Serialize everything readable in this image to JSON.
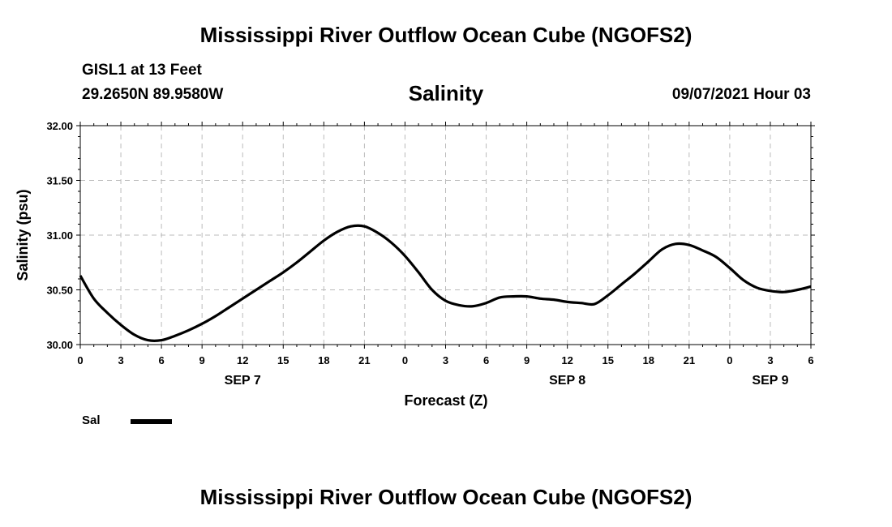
{
  "header": {
    "title": "Mississippi River Outflow Ocean Cube (NGOFS2)",
    "station_name": "GISL1 at 13 Feet",
    "station_coords": "29.2650N  89.9580W",
    "chart_title": "Salinity",
    "run_time": "09/07/2021 Hour 03"
  },
  "footer": {
    "title": "Mississippi River Outflow Ocean Cube (NGOFS2)"
  },
  "legend": {
    "label": "Sal"
  },
  "colors": {
    "line": "#000000",
    "grid": "#bbbbbb"
  },
  "chart_data": {
    "type": "line",
    "title": "Salinity",
    "xlabel": "Forecast (Z)",
    "ylabel": "Salinity (psu)",
    "ylim": [
      30.0,
      32.0
    ],
    "xlim": [
      0,
      54
    ],
    "yticks": [
      "30.00",
      "30.50",
      "31.00",
      "31.50",
      "32.00"
    ],
    "xticks": [
      "0",
      "3",
      "6",
      "9",
      "12",
      "15",
      "18",
      "21",
      "0",
      "3",
      "6",
      "9",
      "12",
      "15",
      "18",
      "21",
      "0",
      "3",
      "6"
    ],
    "date_labels": [
      {
        "label": "SEP 7",
        "hour": 12
      },
      {
        "label": "SEP 8",
        "hour": 36
      },
      {
        "label": "SEP 9",
        "hour": 51
      }
    ],
    "grid": true,
    "series": [
      {
        "name": "Sal",
        "x": [
          0,
          1,
          2,
          3,
          4,
          5,
          6,
          7,
          8,
          9,
          10,
          11,
          12,
          13,
          14,
          15,
          16,
          17,
          18,
          19,
          20,
          21,
          22,
          23,
          24,
          25,
          26,
          27,
          28,
          29,
          30,
          31,
          32,
          33,
          34,
          35,
          36,
          37,
          38,
          39,
          40,
          41,
          42,
          43,
          44,
          45,
          46,
          47,
          48,
          49,
          50,
          51,
          52,
          53,
          54
        ],
        "values": [
          30.63,
          30.42,
          30.29,
          30.18,
          30.09,
          30.04,
          30.04,
          30.08,
          30.13,
          30.19,
          30.26,
          30.34,
          30.42,
          30.5,
          30.58,
          30.66,
          30.75,
          30.85,
          30.95,
          31.03,
          31.08,
          31.08,
          31.02,
          30.93,
          30.81,
          30.66,
          30.5,
          30.4,
          30.36,
          30.35,
          30.38,
          30.43,
          30.44,
          30.44,
          30.42,
          30.41,
          30.39,
          30.38,
          30.37,
          30.45,
          30.55,
          30.65,
          30.76,
          30.87,
          30.92,
          30.91,
          30.86,
          30.8,
          30.7,
          30.59,
          30.52,
          30.49,
          30.48,
          30.5,
          30.53
        ]
      }
    ]
  }
}
